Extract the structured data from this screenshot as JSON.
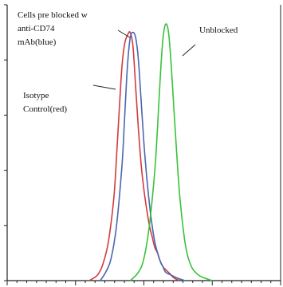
{
  "chart_data": {
    "type": "line",
    "title": "",
    "xlabel": "",
    "ylabel": "",
    "xlim": [
      0,
      1
    ],
    "ylim": [
      0,
      1
    ],
    "grid": false,
    "legend": "none",
    "annotations": [
      {
        "lines": [
          "Cells pre blocked w",
          "anti-CD74",
          "mAb(blue)"
        ],
        "target": "Cells pre blocked w anti-CD74 mAb(blue)"
      },
      {
        "lines": [
          "Isotype",
          "Control(red)"
        ],
        "target": "Isotype Control(red)"
      },
      {
        "lines": [
          "Unblocked"
        ],
        "target": "Unblocked"
      }
    ],
    "series": [
      {
        "color": "#d23b3b",
        "x": [
          0.3,
          0.33,
          0.35,
          0.37,
          0.39,
          0.4,
          0.41,
          0.42,
          0.43,
          0.44,
          0.45,
          0.46,
          0.47,
          0.48,
          0.49,
          0.5,
          0.51,
          0.52,
          0.53,
          0.54,
          0.55,
          0.56,
          0.57,
          0.59,
          0.61,
          0.63
        ],
        "y": [
          0.0,
          0.02,
          0.06,
          0.14,
          0.3,
          0.45,
          0.62,
          0.78,
          0.86,
          0.89,
          0.9,
          0.85,
          0.7,
          0.55,
          0.42,
          0.33,
          0.26,
          0.2,
          0.16,
          0.12,
          0.1,
          0.07,
          0.05,
          0.03,
          0.01,
          0.0
        ]
      },
      {
        "color": "#4a67b0",
        "x": [
          0.34,
          0.36,
          0.38,
          0.4,
          0.42,
          0.43,
          0.44,
          0.45,
          0.46,
          0.47,
          0.48,
          0.49,
          0.5,
          0.51,
          0.52,
          0.53,
          0.54,
          0.55,
          0.56,
          0.57,
          0.58,
          0.6,
          0.62,
          0.65
        ],
        "y": [
          0.0,
          0.03,
          0.08,
          0.2,
          0.42,
          0.6,
          0.78,
          0.88,
          0.9,
          0.88,
          0.8,
          0.65,
          0.5,
          0.38,
          0.28,
          0.2,
          0.14,
          0.1,
          0.07,
          0.05,
          0.03,
          0.02,
          0.01,
          0.0
        ]
      },
      {
        "color": "#39c23a",
        "x": [
          0.45,
          0.48,
          0.5,
          0.52,
          0.54,
          0.55,
          0.56,
          0.57,
          0.58,
          0.59,
          0.6,
          0.61,
          0.62,
          0.63,
          0.64,
          0.65,
          0.66,
          0.67,
          0.68,
          0.7,
          0.72,
          0.75
        ],
        "y": [
          0.0,
          0.03,
          0.08,
          0.2,
          0.4,
          0.56,
          0.74,
          0.88,
          0.93,
          0.9,
          0.78,
          0.62,
          0.46,
          0.32,
          0.22,
          0.14,
          0.09,
          0.06,
          0.04,
          0.02,
          0.01,
          0.0
        ]
      }
    ]
  }
}
